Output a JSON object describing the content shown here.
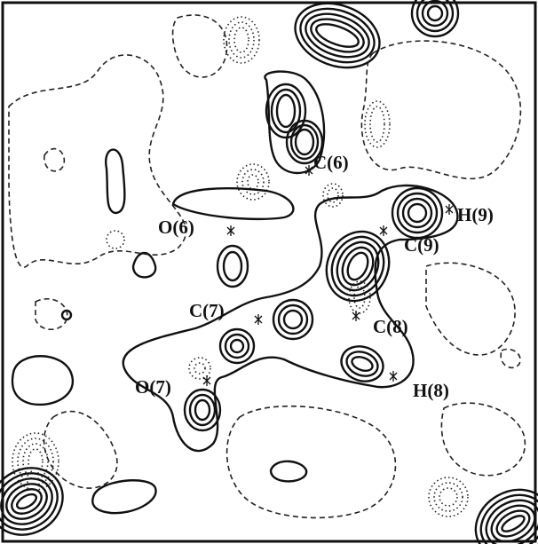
{
  "atom_labels": [
    "C(6)",
    "O(6)",
    "H(9)",
    "C(9)",
    "C(7)",
    "C(8)",
    "O(7)",
    "H(8)"
  ]
}
